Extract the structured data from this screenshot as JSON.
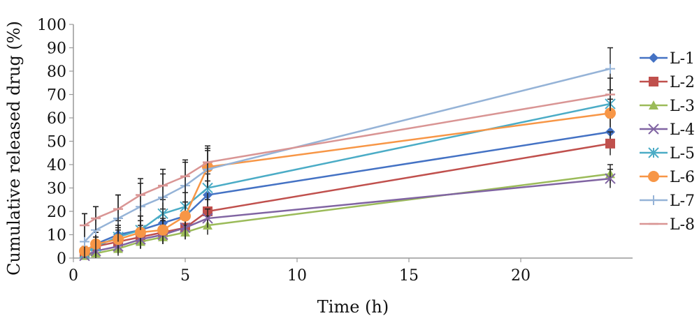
{
  "chart_data": {
    "type": "line",
    "title": "",
    "xlabel": "Time (h)",
    "ylabel": "Cumulative released drug (%)",
    "xlim": [
      0,
      25
    ],
    "ylim": [
      0,
      100
    ],
    "x_ticks": [
      0,
      5,
      10,
      15,
      20
    ],
    "y_ticks": [
      0,
      10,
      20,
      30,
      40,
      50,
      60,
      70,
      80,
      90,
      100
    ],
    "grid": false,
    "legend_position": "right",
    "x": [
      0.5,
      1,
      2,
      3,
      4,
      5,
      6,
      24
    ],
    "series": [
      {
        "name": "L-1",
        "color": "#4472C4",
        "marker": "diamond",
        "values": [
          3,
          6,
          10,
          12,
          15,
          18,
          27,
          54
        ],
        "error": [
          4,
          5,
          6,
          6,
          6,
          6,
          6,
          6
        ]
      },
      {
        "name": "L-2",
        "color": "#C0504D",
        "marker": "square",
        "values": [
          2,
          5,
          7,
          9,
          11,
          13,
          20,
          49
        ],
        "error": [
          3,
          4,
          5,
          5,
          5,
          5,
          5,
          5
        ]
      },
      {
        "name": "L-3",
        "color": "#9BBB59",
        "marker": "triangle",
        "values": [
          1,
          2,
          4,
          7,
          9,
          11,
          14,
          36
        ],
        "error": [
          2,
          3,
          3,
          3,
          3,
          3,
          4,
          4
        ]
      },
      {
        "name": "L-4",
        "color": "#8064A2",
        "marker": "x",
        "values": [
          1,
          3,
          5,
          8,
          10,
          13,
          17,
          34
        ],
        "error": [
          2,
          3,
          3,
          4,
          4,
          4,
          4,
          4
        ]
      },
      {
        "name": "L-5",
        "color": "#4BACC6",
        "marker": "star",
        "values": [
          2,
          5,
          9,
          12,
          19,
          22,
          30,
          66
        ],
        "error": [
          3,
          4,
          5,
          6,
          6,
          6,
          6,
          6
        ]
      },
      {
        "name": "L-6",
        "color": "#F79646",
        "marker": "circle",
        "values": [
          3,
          6,
          8,
          11,
          12,
          18,
          39,
          62
        ],
        "error": [
          4,
          5,
          5,
          5,
          5,
          6,
          8,
          6
        ]
      },
      {
        "name": "L-7",
        "color": "#95B3D7",
        "marker": "plus",
        "values": [
          7,
          12,
          17,
          22,
          26,
          31,
          38,
          81
        ],
        "error": [
          12,
          10,
          10,
          10,
          10,
          10,
          8,
          9
        ]
      },
      {
        "name": "L-8",
        "color": "#D99594",
        "marker": "dash",
        "values": [
          14,
          17,
          21,
          27,
          31,
          35,
          41,
          70
        ],
        "error": [
          5,
          5,
          6,
          7,
          7,
          7,
          7,
          7
        ]
      }
    ]
  }
}
